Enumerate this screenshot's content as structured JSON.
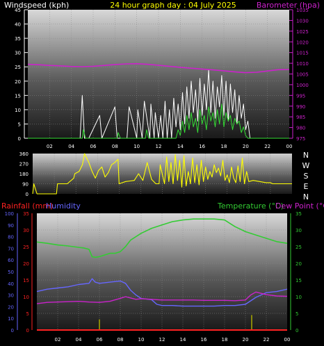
{
  "header": {
    "left_title": "Windspeed (kph)",
    "center_title": "24 hour graph day : 04 July 2025",
    "right_title": "Barometer (hpa)"
  },
  "colors": {
    "wind_label": "#ffffff",
    "center_title": "#ffff00",
    "barometer": "#cc22cc",
    "wind_speed": "#ffffff",
    "gust": "#33dd33",
    "direction": "#ffff00",
    "rain": "#ff2222",
    "humidity": "#6666ff",
    "temperature": "#33cc33",
    "dewpoint": "#cc22cc",
    "rain_bar": "#aaaa00"
  },
  "chart_data": [
    {
      "id": "wind_baro",
      "type": "line",
      "x_ticks": [
        "02",
        "04",
        "06",
        "08",
        "10",
        "12",
        "14",
        "16",
        "18",
        "20",
        "22",
        "00"
      ],
      "xlim": [
        0,
        24
      ],
      "y_left": {
        "label": "Windspeed (kph)",
        "lim": [
          0,
          45
        ],
        "ticks": [
          0,
          5,
          10,
          15,
          20,
          25,
          30,
          35,
          40,
          45
        ]
      },
      "y_right": {
        "label": "Barometer (hpa)",
        "lim": [
          975,
          1035
        ],
        "ticks": [
          975,
          980,
          985,
          990,
          995,
          1000,
          1005,
          1010,
          1015,
          1020,
          1025,
          1030,
          1035
        ]
      },
      "grid": true,
      "series": [
        {
          "name": "Barometer (hpa)",
          "axis": "right",
          "x": [
            0,
            1,
            2,
            3,
            4,
            5,
            6,
            7,
            8,
            9,
            10,
            11,
            12,
            13,
            14,
            15,
            16,
            17,
            18,
            19,
            20,
            21,
            22,
            23,
            24
          ],
          "values": [
            1009.5,
            1009.3,
            1009,
            1008.8,
            1008.5,
            1008.4,
            1008.6,
            1009,
            1009.4,
            1009.7,
            1009.8,
            1009.5,
            1009.1,
            1008.6,
            1008.1,
            1007.7,
            1007.3,
            1006.9,
            1006.5,
            1006,
            1005.6,
            1005.8,
            1006.4,
            1007,
            1007.1
          ]
        },
        {
          "name": "Windspeed (kph)",
          "axis": "left",
          "x": [
            0,
            4.8,
            5.0,
            5.2,
            5.6,
            6.6,
            6.8,
            8.0,
            8.2,
            9.1,
            9.3,
            10.0,
            10.1,
            10.5,
            10.7,
            11.2,
            11.3,
            11.6,
            11.7,
            12.0,
            12.2,
            12.4,
            12.6,
            12.8,
            13.0,
            13.2,
            13.4,
            13.6,
            13.8,
            14.0,
            14.2,
            14.4,
            14.6,
            14.8,
            15.0,
            15.2,
            15.4,
            15.6,
            15.8,
            16.0,
            16.2,
            16.4,
            16.6,
            16.8,
            17.0,
            17.2,
            17.4,
            17.6,
            17.8,
            18.0,
            18.2,
            18.4,
            18.6,
            18.8,
            19.0,
            19.2,
            19.4,
            19.6,
            19.8,
            20.0,
            20.2,
            20.4,
            24
          ],
          "values": [
            0,
            0,
            15,
            0,
            0,
            8,
            0,
            11,
            0,
            0,
            11,
            0,
            10,
            0,
            13,
            0,
            12,
            0,
            9,
            0,
            8,
            0,
            13,
            0,
            10,
            0,
            14,
            4,
            12,
            3,
            16,
            5,
            18,
            7,
            20,
            9,
            17,
            6,
            21,
            8,
            19,
            10,
            24,
            9,
            20,
            7,
            18,
            11,
            22,
            8,
            20,
            6,
            19,
            9,
            17,
            5,
            15,
            7,
            12,
            3,
            6,
            0,
            0
          ]
        },
        {
          "name": "Gust (kph)",
          "axis": "left",
          "x": [
            0,
            5.0,
            5.1,
            5.3,
            8.2,
            8.3,
            8.5,
            10.8,
            10.9,
            11.1,
            13.6,
            13.8,
            14.0,
            14.2,
            14.4,
            14.6,
            14.8,
            15.0,
            15.2,
            15.4,
            15.6,
            15.8,
            16.0,
            16.2,
            16.4,
            16.6,
            16.8,
            17.0,
            17.2,
            17.4,
            17.6,
            17.8,
            18.0,
            18.2,
            18.4,
            18.6,
            18.8,
            19.0,
            19.2,
            19.4,
            19.6,
            19.8,
            20.0,
            20.2,
            24
          ],
          "values": [
            0,
            0,
            3,
            0,
            0,
            2,
            0,
            0,
            3,
            0,
            0,
            3,
            1,
            6,
            2,
            8,
            3,
            9,
            4,
            7,
            2,
            10,
            5,
            8,
            3,
            11,
            6,
            9,
            4,
            10,
            5,
            12,
            4,
            9,
            6,
            8,
            3,
            7,
            5,
            6,
            2,
            4,
            1,
            0,
            0
          ]
        }
      ]
    },
    {
      "id": "wind_direction",
      "type": "line",
      "xlim": [
        0,
        24
      ],
      "y_left": {
        "lim": [
          0,
          360
        ],
        "ticks": [
          0,
          90,
          180,
          270,
          360
        ]
      },
      "compass": [
        "N",
        "W",
        "S",
        "E",
        "N"
      ],
      "grid": true,
      "series": [
        {
          "name": "Wind direction",
          "x": [
            0,
            0.1,
            0.4,
            0.5,
            2.2,
            2.3,
            3.2,
            3.8,
            3.9,
            4.3,
            4.6,
            4.8,
            5.2,
            5.5,
            5.8,
            6.1,
            6.4,
            6.7,
            7.0,
            7.3,
            7.6,
            7.9,
            8.0,
            8.3,
            8.6,
            9.0,
            9.4,
            9.8,
            10.2,
            10.6,
            11.0,
            11.4,
            11.7,
            11.8,
            12.2,
            12.4,
            12.6,
            12.8,
            13.0,
            13.2,
            13.4,
            13.6,
            13.8,
            14.0,
            14.2,
            14.4,
            14.6,
            14.8,
            15.0,
            15.2,
            15.4,
            15.6,
            15.8,
            16.0,
            16.2,
            16.4,
            16.6,
            16.8,
            17.0,
            17.2,
            17.4,
            17.6,
            17.8,
            18.0,
            18.2,
            18.4,
            18.6,
            18.8,
            19.0,
            19.2,
            19.4,
            19.6,
            19.8,
            20.0,
            20.4,
            21.0,
            21.6,
            22.0,
            22.2,
            22.6,
            23.0,
            24
          ],
          "values": [
            0,
            90,
            0,
            0,
            0,
            90,
            90,
            140,
            180,
            200,
            260,
            360,
            280,
            200,
            140,
            210,
            240,
            150,
            190,
            260,
            280,
            310,
            90,
            100,
            110,
            115,
            120,
            180,
            120,
            280,
            130,
            90,
            90,
            260,
            90,
            330,
            110,
            280,
            90,
            350,
            120,
            300,
            60,
            340,
            70,
            200,
            90,
            320,
            100,
            260,
            80,
            300,
            110,
            240,
            130,
            200,
            150,
            260,
            190,
            230,
            160,
            300,
            120,
            170,
            100,
            240,
            140,
            100,
            250,
            110,
            320,
            90,
            200,
            110,
            120,
            110,
            100,
            100,
            90,
            90,
            90,
            90
          ]
        }
      ]
    },
    {
      "id": "rain_hum_temp",
      "type": "line",
      "x_ticks": [
        "02",
        "04",
        "06",
        "08",
        "10",
        "12",
        "14",
        "16",
        "18",
        "20",
        "22",
        "00"
      ],
      "xlim": [
        0,
        24
      ],
      "y_left_humidity": {
        "label": "Humidity",
        "lim": [
          0,
          100
        ],
        "ticks": [
          0,
          10,
          20,
          30,
          40,
          50,
          60,
          70,
          80,
          90,
          100
        ]
      },
      "y_left_rain": {
        "label": "Rainfall (mm)",
        "lim": [
          0,
          35
        ],
        "ticks": [
          0,
          5,
          10,
          15,
          20,
          25,
          30,
          35
        ]
      },
      "y_right": {
        "label": "Temperature (°C) / Dew Point (°C)",
        "lim": [
          0,
          35
        ],
        "ticks": [
          0,
          5,
          10,
          15,
          20,
          25,
          30,
          35
        ]
      },
      "grid": true,
      "legend": [
        "Rainfall (mm)",
        "Humidity",
        "Temperature (°C)",
        "Dew Point (°C)"
      ],
      "series": [
        {
          "name": "Temperature (°C)",
          "axis": "right",
          "x": [
            0,
            1,
            2,
            3,
            4,
            4.5,
            5,
            5.3,
            5.6,
            6,
            6.5,
            7,
            7.5,
            8,
            8.5,
            9,
            10,
            11,
            12,
            13,
            14,
            15,
            16,
            17,
            18,
            18.5,
            19,
            20,
            21,
            22,
            23,
            24
          ],
          "values": [
            26.4,
            26,
            25.5,
            25.2,
            24.8,
            24.6,
            24.2,
            22,
            21.8,
            22,
            22.5,
            23,
            23,
            23.5,
            25,
            27,
            29,
            30.5,
            31.5,
            32.5,
            33,
            33.3,
            33.3,
            33.3,
            33,
            32,
            31,
            29.5,
            28.5,
            27.5,
            26.5,
            26
          ]
        },
        {
          "name": "Humidity",
          "axis": "left_humidity",
          "x": [
            0,
            1,
            2,
            3,
            4,
            5,
            5.3,
            5.6,
            6,
            7,
            8,
            8.5,
            9,
            9.5,
            10,
            11,
            11.5,
            12,
            13,
            14,
            15,
            16,
            17,
            18,
            19,
            20,
            21,
            22,
            23,
            24
          ],
          "values": [
            33,
            35,
            36,
            37,
            39,
            40,
            44,
            41,
            40,
            41,
            42,
            40,
            34,
            30,
            27,
            26,
            22,
            21,
            21,
            20.5,
            20.5,
            20.5,
            20.5,
            21,
            21,
            22,
            28,
            32,
            33,
            35
          ]
        },
        {
          "name": "Dew Point (°C)",
          "axis": "right",
          "x": [
            0,
            1,
            2,
            3,
            4,
            5,
            6,
            7,
            8,
            8.5,
            9,
            9.5,
            10,
            11,
            12,
            13,
            14,
            15,
            16,
            17,
            18,
            19,
            20,
            20.5,
            21,
            22,
            23,
            24
          ],
          "values": [
            7.9,
            8.3,
            8.4,
            8.5,
            8.6,
            8.4,
            8.3,
            8.6,
            9.5,
            10,
            9.6,
            9.2,
            9.4,
            9.2,
            9,
            9,
            9,
            9,
            8.9,
            8.9,
            8.9,
            8.8,
            9,
            10.5,
            11.4,
            10.6,
            10.2,
            10.1
          ]
        },
        {
          "name": "Rainfall (mm)",
          "axis": "left_rain",
          "x": [
            0,
            24
          ],
          "values": [
            0,
            0
          ]
        },
        {
          "name": "Rain rate",
          "type": "bar",
          "axis": "left_rain",
          "x": [
            6.0,
            20.6
          ],
          "values": [
            3.2,
            4.5
          ]
        }
      ]
    }
  ]
}
